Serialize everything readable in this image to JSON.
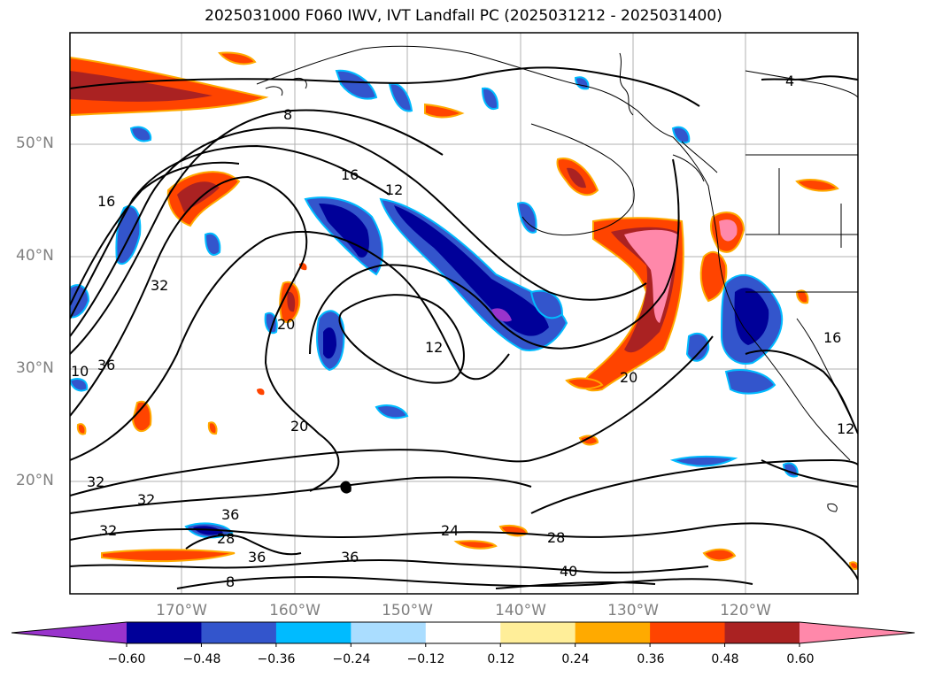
{
  "title": "2025031000 F060 IWV, IVT Landfall PC (2025031212 - 2025031400)",
  "lat_labels": [
    "50°N",
    "40°N",
    "30°N",
    "20°N"
  ],
  "lon_labels": [
    "170°W",
    "160°W",
    "150°W",
    "140°W",
    "130°W",
    "120°W"
  ],
  "colorbar": {
    "ticks": [
      "−0.60",
      "−0.48",
      "−0.36",
      "−0.24",
      "−0.12",
      "0.12",
      "0.24",
      "0.36",
      "0.48",
      "0.60"
    ],
    "colors": [
      "#9933cc",
      "#000099",
      "#3355cc",
      "#00bbff",
      "#aaddff",
      "#ffffff",
      "#ffee99",
      "#ffaa00",
      "#ff4400",
      "#aa2222",
      "#ff88aa"
    ]
  },
  "contour_labels": [
    "4",
    "8",
    "16",
    "12",
    "16",
    "32",
    "20",
    "12",
    "20",
    "16",
    "10",
    "36",
    "20",
    "12",
    "32",
    "32",
    "36",
    "28",
    "32",
    "36",
    "24",
    "28",
    "36",
    "40",
    "8"
  ]
}
